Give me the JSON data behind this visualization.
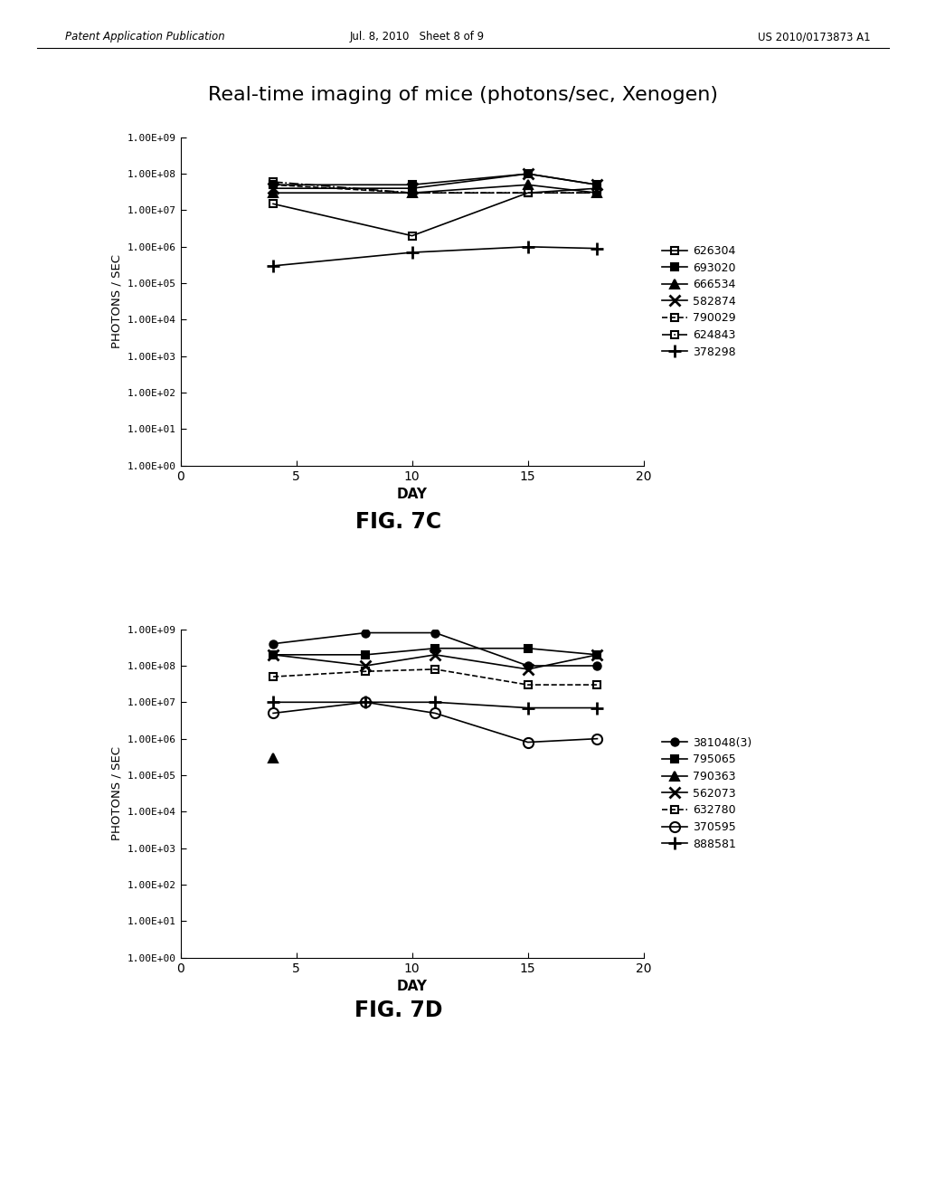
{
  "title": "Real-time imaging of mice (photons/sec, Xenogen)",
  "header_left": "Patent Application Publication",
  "header_center": "Jul. 8, 2010   Sheet 8 of 9",
  "header_right": "US 2010/0173873 A1",
  "fig7c": {
    "caption": "FIG. 7C",
    "xlabel": "DAY",
    "ylabel": "PHOTONS / SEC",
    "xlim": [
      0,
      20
    ],
    "ylim_log": [
      0,
      9
    ],
    "xticks": [
      0,
      5,
      10,
      15,
      20
    ],
    "ytick_labels": [
      "1.00E+00",
      "1.00E+01",
      "1.00E+02",
      "1.00E+03",
      "1.00E+04",
      "1.00E+05",
      "1.00E+06",
      "1.00E+07",
      "1.00E+08",
      "1.00E+09"
    ],
    "series": [
      {
        "label": "626304",
        "days": [
          4,
          10,
          15,
          18
        ],
        "values": [
          15000000.0,
          2000000.0,
          30000000.0,
          40000000.0
        ],
        "marker": "s",
        "fillstyle": "none",
        "linestyle": "-",
        "color": "black"
      },
      {
        "label": "693020",
        "days": [
          4,
          10,
          15,
          18
        ],
        "values": [
          50000000.0,
          50000000.0,
          100000000.0,
          50000000.0
        ],
        "marker": "s",
        "fillstyle": "full",
        "linestyle": "-",
        "color": "black"
      },
      {
        "label": "666534",
        "days": [
          4,
          10,
          15,
          18
        ],
        "values": [
          30000000.0,
          30000000.0,
          50000000.0,
          30000000.0
        ],
        "marker": "^",
        "fillstyle": "full",
        "linestyle": "-",
        "color": "black"
      },
      {
        "label": "582874",
        "days": [
          4,
          10,
          15,
          18
        ],
        "values": [
          40000000.0,
          40000000.0,
          100000000.0,
          50000000.0
        ],
        "marker": "x",
        "fillstyle": "full",
        "linestyle": "-",
        "color": "black"
      },
      {
        "label": "790029",
        "days": [
          4,
          10,
          15,
          18
        ],
        "values": [
          50000000.0,
          30000000.0,
          30000000.0,
          30000000.0
        ],
        "marker": "s",
        "fillstyle": "none",
        "linestyle": "--",
        "color": "black"
      },
      {
        "label": "624843",
        "days": [
          4,
          10,
          15,
          18
        ],
        "values": [
          60000000.0,
          30000000.0,
          30000000.0,
          30000000.0
        ],
        "marker": "s",
        "fillstyle": "none",
        "linestyle": "-.",
        "color": "black"
      },
      {
        "label": "378298",
        "days": [
          4,
          10,
          15,
          18
        ],
        "values": [
          300000.0,
          700000.0,
          1000000.0,
          900000.0
        ],
        "marker": "+",
        "fillstyle": "full",
        "linestyle": "-",
        "color": "black"
      }
    ]
  },
  "fig7d": {
    "caption": "FIG. 7D",
    "xlabel": "DAY",
    "ylabel": "PHOTONS / SEC",
    "xlim": [
      0,
      20
    ],
    "ylim_log": [
      0,
      9
    ],
    "xticks": [
      0,
      5,
      10,
      15,
      20
    ],
    "ytick_labels": [
      "1.00E+00",
      "1.00E+01",
      "1.00E+02",
      "1.00E+03",
      "1.00E+04",
      "1.00E+05",
      "1.00E+06",
      "1.00E+07",
      "1.00E+08",
      "1.00E+09"
    ],
    "series": [
      {
        "label": "381048(3)",
        "days": [
          4,
          8,
          11,
          15,
          18
        ],
        "values": [
          400000000.0,
          800000000.0,
          800000000.0,
          100000000.0,
          100000000.0
        ],
        "marker": "o",
        "fillstyle": "full",
        "linestyle": "-",
        "color": "black"
      },
      {
        "label": "795065",
        "days": [
          4,
          8,
          11,
          15,
          18
        ],
        "values": [
          200000000.0,
          200000000.0,
          300000000.0,
          300000000.0,
          200000000.0
        ],
        "marker": "s",
        "fillstyle": "full",
        "linestyle": "-",
        "color": "black"
      },
      {
        "label": "790363",
        "days": [
          4
        ],
        "values": [
          300000.0
        ],
        "marker": "^",
        "fillstyle": "full",
        "linestyle": "-",
        "color": "black"
      },
      {
        "label": "562073",
        "days": [
          4,
          8,
          11,
          15,
          18
        ],
        "values": [
          200000000.0,
          100000000.0,
          200000000.0,
          80000000.0,
          200000000.0
        ],
        "marker": "x",
        "fillstyle": "full",
        "linestyle": "-",
        "color": "black"
      },
      {
        "label": "632780",
        "days": [
          4,
          8,
          11,
          15,
          18
        ],
        "values": [
          50000000.0,
          70000000.0,
          80000000.0,
          30000000.0,
          30000000.0
        ],
        "marker": "s",
        "fillstyle": "none",
        "linestyle": "--",
        "color": "black"
      },
      {
        "label": "370595",
        "days": [
          4,
          8,
          11,
          15,
          18
        ],
        "values": [
          5000000.0,
          10000000.0,
          5000000.0,
          800000.0,
          1000000.0
        ],
        "marker": "o",
        "fillstyle": "none",
        "linestyle": "-",
        "color": "black"
      },
      {
        "label": "888581",
        "days": [
          4,
          8,
          11,
          15,
          18
        ],
        "values": [
          10000000.0,
          10000000.0,
          10000000.0,
          7000000.0,
          7000000.0
        ],
        "marker": "+",
        "fillstyle": "full",
        "linestyle": "-",
        "color": "black"
      }
    ]
  },
  "background_color": "#ffffff",
  "text_color": "#000000"
}
